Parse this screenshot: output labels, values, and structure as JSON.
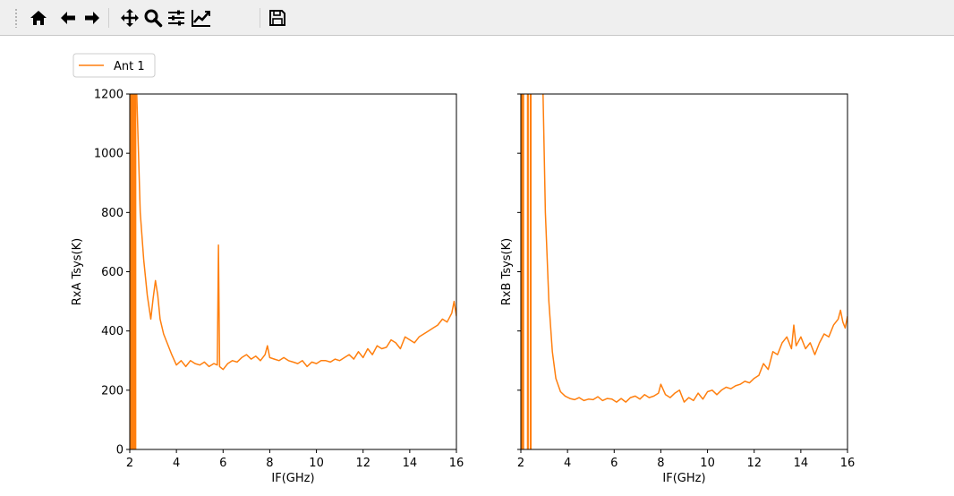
{
  "toolbar": {
    "buttons": [
      {
        "name": "home-icon",
        "tooltip": "Home"
      },
      {
        "name": "back-icon",
        "tooltip": "Back"
      },
      {
        "name": "forward-icon",
        "tooltip": "Forward"
      },
      {
        "name": "pan-icon",
        "tooltip": "Pan"
      },
      {
        "name": "zoom-icon",
        "tooltip": "Zoom"
      },
      {
        "name": "subplots-icon",
        "tooltip": "Subplots"
      },
      {
        "name": "customize-icon",
        "tooltip": "Customize"
      },
      {
        "name": "save-icon",
        "tooltip": "Save"
      }
    ]
  },
  "colors": {
    "series": "#ff7f0e"
  },
  "chart_data": [
    {
      "type": "line",
      "xlabel": "IF(GHz)",
      "ylabel": "RxA Tsys(K)",
      "xlim": [
        2,
        16
      ],
      "ylim": [
        0,
        1200
      ],
      "xticks": [
        "2",
        "4",
        "6",
        "8",
        "10",
        "12",
        "14",
        "16"
      ],
      "yticks": [
        "0",
        "200",
        "400",
        "600",
        "800",
        "1000",
        "1200"
      ],
      "legend": {
        "placement": "top-left",
        "entries": [
          "Ant 1"
        ]
      },
      "series": [
        {
          "name": "Ant 1",
          "spikes": [
            2.03,
            2.08,
            2.13,
            2.18,
            2.24
          ],
          "x": [
            2.3,
            2.45,
            2.6,
            2.75,
            2.9,
            3.0,
            3.1,
            3.2,
            3.3,
            3.45,
            3.6,
            3.8,
            4.0,
            4.2,
            4.4,
            4.6,
            4.8,
            5.0,
            5.2,
            5.4,
            5.6,
            5.75,
            5.8,
            5.85,
            6.0,
            6.2,
            6.4,
            6.6,
            6.8,
            7.0,
            7.2,
            7.4,
            7.6,
            7.8,
            7.9,
            8.0,
            8.2,
            8.4,
            8.6,
            8.8,
            9.0,
            9.2,
            9.4,
            9.6,
            9.8,
            10.0,
            10.2,
            10.4,
            10.6,
            10.8,
            11.0,
            11.2,
            11.4,
            11.6,
            11.8,
            12.0,
            12.2,
            12.4,
            12.6,
            12.8,
            13.0,
            13.2,
            13.4,
            13.6,
            13.8,
            14.0,
            14.2,
            14.4,
            14.6,
            14.8,
            15.0,
            15.2,
            15.4,
            15.6,
            15.8,
            15.9,
            16.0
          ],
          "y": [
            1200,
            800,
            640,
            520,
            440,
            510,
            570,
            520,
            440,
            390,
            360,
            320,
            285,
            300,
            280,
            300,
            290,
            285,
            295,
            280,
            290,
            285,
            690,
            280,
            270,
            290,
            300,
            295,
            310,
            320,
            305,
            315,
            300,
            320,
            350,
            310,
            305,
            300,
            310,
            300,
            295,
            290,
            300,
            280,
            295,
            290,
            300,
            300,
            295,
            305,
            300,
            310,
            320,
            305,
            330,
            310,
            340,
            320,
            350,
            340,
            345,
            370,
            360,
            340,
            380,
            370,
            360,
            380,
            390,
            400,
            410,
            420,
            440,
            430,
            460,
            500,
            450
          ]
        }
      ]
    },
    {
      "type": "line",
      "xlabel": "IF(GHz)",
      "ylabel": "RxB Tsys(K)",
      "xlim": [
        2,
        16
      ],
      "ylim": [
        0,
        1200
      ],
      "xticks": [
        "2",
        "4",
        "6",
        "8",
        "10",
        "12",
        "14",
        "16"
      ],
      "yticks": [],
      "series": [
        {
          "name": "Ant 1",
          "spikes": [
            2.03,
            2.1,
            2.3,
            2.42
          ],
          "x": [
            2.95,
            3.05,
            3.2,
            3.35,
            3.5,
            3.7,
            3.9,
            4.1,
            4.3,
            4.5,
            4.7,
            4.9,
            5.1,
            5.3,
            5.5,
            5.7,
            5.9,
            6.1,
            6.3,
            6.5,
            6.7,
            6.9,
            7.1,
            7.3,
            7.5,
            7.7,
            7.9,
            8.0,
            8.2,
            8.4,
            8.6,
            8.8,
            9.0,
            9.2,
            9.4,
            9.6,
            9.8,
            10.0,
            10.2,
            10.4,
            10.6,
            10.8,
            11.0,
            11.2,
            11.4,
            11.6,
            11.8,
            12.0,
            12.2,
            12.4,
            12.6,
            12.8,
            13.0,
            13.2,
            13.4,
            13.6,
            13.7,
            13.8,
            14.0,
            14.2,
            14.4,
            14.6,
            14.8,
            15.0,
            15.2,
            15.4,
            15.6,
            15.7,
            15.8,
            15.9,
            16.0
          ],
          "y": [
            1200,
            800,
            500,
            330,
            240,
            195,
            180,
            172,
            168,
            175,
            165,
            170,
            168,
            178,
            165,
            172,
            170,
            160,
            172,
            160,
            175,
            180,
            170,
            185,
            175,
            180,
            190,
            220,
            185,
            175,
            190,
            200,
            160,
            175,
            165,
            190,
            170,
            195,
            200,
            185,
            200,
            210,
            205,
            215,
            220,
            230,
            225,
            240,
            250,
            290,
            270,
            330,
            320,
            360,
            380,
            340,
            420,
            350,
            380,
            340,
            360,
            320,
            360,
            390,
            380,
            420,
            440,
            470,
            430,
            410,
            450
          ]
        }
      ]
    }
  ]
}
